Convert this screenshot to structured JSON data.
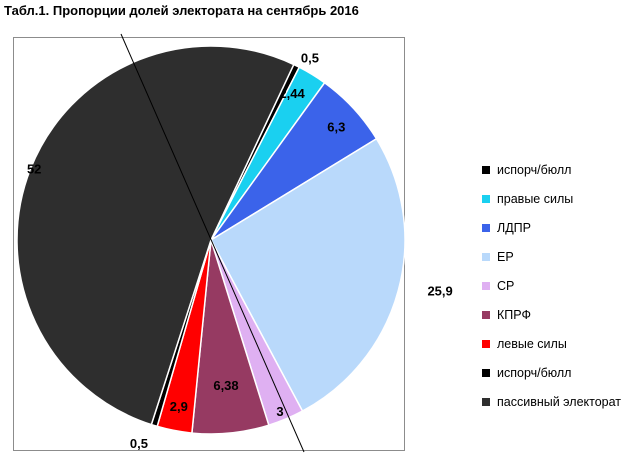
{
  "title": "Табл.1.  Пропорции долей электората на сентябрь 2016",
  "chart_data": {
    "type": "pie",
    "slices": [
      {
        "label": "испорч/бюлл",
        "value": 0.5,
        "value_label": "0,5",
        "color": "#000000"
      },
      {
        "label": "правые силы",
        "value": 2.44,
        "value_label": "2,44",
        "color": "#1ad0f0"
      },
      {
        "label": "ЛДПР",
        "value": 6.3,
        "value_label": "6,3",
        "color": "#3b63ea"
      },
      {
        "label": "ЕР",
        "value": 25.9,
        "value_label": "25,9",
        "color": "#b9d9fb"
      },
      {
        "label": "СР",
        "value": 3,
        "value_label": "3",
        "color": "#dfb0f2"
      },
      {
        "label": "КПРФ",
        "value": 6.38,
        "value_label": "6,38",
        "color": "#963a62"
      },
      {
        "label": "левые силы",
        "value": 2.9,
        "value_label": "2,9",
        "color": "#ff0000"
      },
      {
        "label": "испорч/бюлл",
        "value": 0.5,
        "value_label": "0,5",
        "color": "#000000"
      },
      {
        "label": "пассивный электорат",
        "value": 52,
        "value_label": "52",
        "color": "#2e2e2e"
      }
    ],
    "legend_position": "right"
  }
}
